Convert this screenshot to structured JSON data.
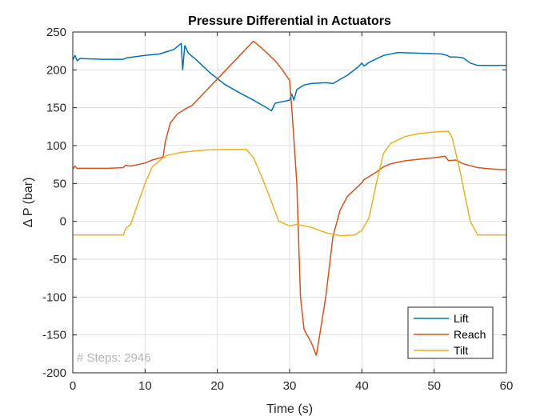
{
  "chart_data": {
    "type": "line",
    "title": "Pressure Differential in Actuators",
    "xlabel": "Time (s)",
    "ylabel": "Δ P (bar)",
    "xlim": [
      0,
      60
    ],
    "ylim": [
      -200,
      250
    ],
    "xticks": [
      "0",
      "10",
      "20",
      "30",
      "40",
      "50",
      "60"
    ],
    "yticks": [
      "-200",
      "-150",
      "-100",
      "-50",
      "0",
      "50",
      "100",
      "150",
      "200",
      "250"
    ],
    "grid": true,
    "legend_position": "bottom-right",
    "annotation": "# Steps: 2946",
    "series": [
      {
        "name": "Lift",
        "color": "#0072bd",
        "points": [
          [
            0,
            213
          ],
          [
            0.3,
            219
          ],
          [
            0.6,
            212
          ],
          [
            1,
            215
          ],
          [
            4,
            214
          ],
          [
            7,
            214
          ],
          [
            7.5,
            216
          ],
          [
            10,
            219
          ],
          [
            12,
            221
          ],
          [
            13,
            224
          ],
          [
            14,
            227
          ],
          [
            15,
            235
          ],
          [
            15.2,
            200
          ],
          [
            15.5,
            232
          ],
          [
            16,
            222
          ],
          [
            17,
            214
          ],
          [
            19,
            196
          ],
          [
            21,
            181
          ],
          [
            23,
            170
          ],
          [
            25,
            160
          ],
          [
            27,
            149
          ],
          [
            27.5,
            146
          ],
          [
            28,
            156
          ],
          [
            30,
            160
          ],
          [
            30.3,
            168
          ],
          [
            30.6,
            160
          ],
          [
            31,
            174
          ],
          [
            32,
            180
          ],
          [
            33,
            182
          ],
          [
            35,
            183
          ],
          [
            36,
            182
          ],
          [
            38,
            193
          ],
          [
            39.5,
            204
          ],
          [
            40,
            209
          ],
          [
            40.3,
            205
          ],
          [
            41,
            210
          ],
          [
            43,
            219
          ],
          [
            45,
            223
          ],
          [
            48,
            222
          ],
          [
            51,
            221
          ],
          [
            51.8,
            219
          ],
          [
            52.2,
            217
          ],
          [
            53,
            217
          ],
          [
            54,
            216
          ],
          [
            55,
            209
          ],
          [
            56,
            206
          ],
          [
            60,
            206
          ]
        ]
      },
      {
        "name": "Reach",
        "color": "#d95319",
        "points": [
          [
            0,
            69
          ],
          [
            0.3,
            73
          ],
          [
            0.6,
            70
          ],
          [
            1,
            70
          ],
          [
            5,
            70
          ],
          [
            7,
            71
          ],
          [
            7.3,
            74
          ],
          [
            8,
            73
          ],
          [
            10,
            77
          ],
          [
            11,
            81
          ],
          [
            12.5,
            85
          ],
          [
            12.8,
            105
          ],
          [
            13.5,
            130
          ],
          [
            14.5,
            142
          ],
          [
            15.5,
            148
          ],
          [
            16.5,
            153
          ],
          [
            18,
            168
          ],
          [
            20,
            188
          ],
          [
            22,
            208
          ],
          [
            24,
            228
          ],
          [
            25,
            238
          ],
          [
            26,
            230
          ],
          [
            28,
            212
          ],
          [
            29,
            200
          ],
          [
            30,
            186
          ],
          [
            30.3,
            150
          ],
          [
            31,
            50
          ],
          [
            31.5,
            -100
          ],
          [
            32,
            -143
          ],
          [
            33,
            -160
          ],
          [
            33.7,
            -177
          ],
          [
            34,
            -160
          ],
          [
            35,
            -100
          ],
          [
            36,
            -20
          ],
          [
            37,
            15
          ],
          [
            38,
            33
          ],
          [
            39,
            42
          ],
          [
            40,
            51
          ],
          [
            40.3,
            55
          ],
          [
            41,
            59
          ],
          [
            42,
            65
          ],
          [
            43,
            72
          ],
          [
            44,
            76
          ],
          [
            46,
            80
          ],
          [
            48,
            82
          ],
          [
            50,
            84
          ],
          [
            51.5,
            86
          ],
          [
            52,
            80
          ],
          [
            53,
            81
          ],
          [
            54,
            76
          ],
          [
            56,
            71
          ],
          [
            58,
            69
          ],
          [
            60,
            68
          ]
        ]
      },
      {
        "name": "Tilt",
        "color": "#edb120",
        "points": [
          [
            0,
            -18
          ],
          [
            3,
            -18
          ],
          [
            7,
            -18
          ],
          [
            7.3,
            -10
          ],
          [
            8,
            -4
          ],
          [
            10,
            50
          ],
          [
            11,
            72
          ],
          [
            12,
            80
          ],
          [
            13,
            87
          ],
          [
            15,
            91
          ],
          [
            18,
            94
          ],
          [
            21,
            95
          ],
          [
            24,
            95
          ],
          [
            25,
            84
          ],
          [
            26,
            62
          ],
          [
            27,
            38
          ],
          [
            28,
            13
          ],
          [
            28.5,
            0
          ],
          [
            30,
            -6
          ],
          [
            31,
            -4
          ],
          [
            33,
            -8
          ],
          [
            35,
            -15
          ],
          [
            37,
            -19
          ],
          [
            39,
            -18
          ],
          [
            40,
            -12
          ],
          [
            41,
            5
          ],
          [
            42,
            50
          ],
          [
            43,
            90
          ],
          [
            44,
            103
          ],
          [
            46,
            112
          ],
          [
            48,
            116
          ],
          [
            50,
            118
          ],
          [
            52,
            119
          ],
          [
            52.5,
            110
          ],
          [
            53.5,
            70
          ],
          [
            55,
            0
          ],
          [
            56,
            -18
          ],
          [
            60,
            -18
          ]
        ]
      }
    ]
  }
}
